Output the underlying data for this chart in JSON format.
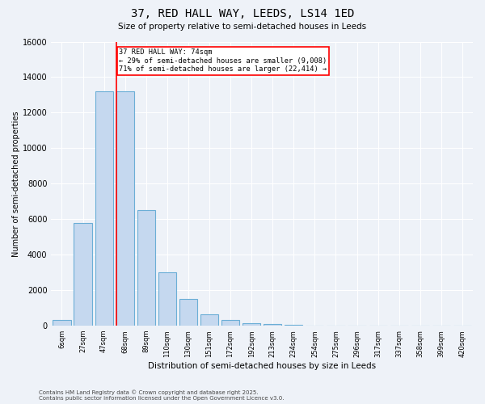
{
  "title": "37, RED HALL WAY, LEEDS, LS14 1ED",
  "subtitle": "Size of property relative to semi-detached houses in Leeds",
  "xlabel": "Distribution of semi-detached houses by size in Leeds",
  "ylabel": "Number of semi-detached properties",
  "bar_color": "#c5d8ef",
  "bar_edge_color": "#6baed6",
  "background_color": "#eef2f8",
  "grid_color": "#ffffff",
  "categories": [
    "6sqm",
    "27sqm",
    "47sqm",
    "68sqm",
    "89sqm",
    "110sqm",
    "130sqm",
    "151sqm",
    "172sqm",
    "192sqm",
    "213sqm",
    "234sqm",
    "254sqm",
    "275sqm",
    "296sqm",
    "317sqm",
    "337sqm",
    "358sqm",
    "399sqm",
    "420sqm"
  ],
  "values": [
    300,
    5800,
    13200,
    13200,
    6500,
    3000,
    1500,
    650,
    300,
    150,
    80,
    30,
    10,
    5,
    2,
    1,
    0,
    0,
    0,
    0
  ],
  "ylim": [
    0,
    16000
  ],
  "yticks": [
    0,
    2000,
    4000,
    6000,
    8000,
    10000,
    12000,
    14000,
    16000
  ],
  "red_line_index": 3,
  "annotation_title": "37 RED HALL WAY: 74sqm",
  "annotation_line1": "← 29% of semi-detached houses are smaller (9,008)",
  "annotation_line2": "71% of semi-detached houses are larger (22,414) →",
  "footnote1": "Contains HM Land Registry data © Crown copyright and database right 2025.",
  "footnote2": "Contains public sector information licensed under the Open Government Licence v3.0."
}
